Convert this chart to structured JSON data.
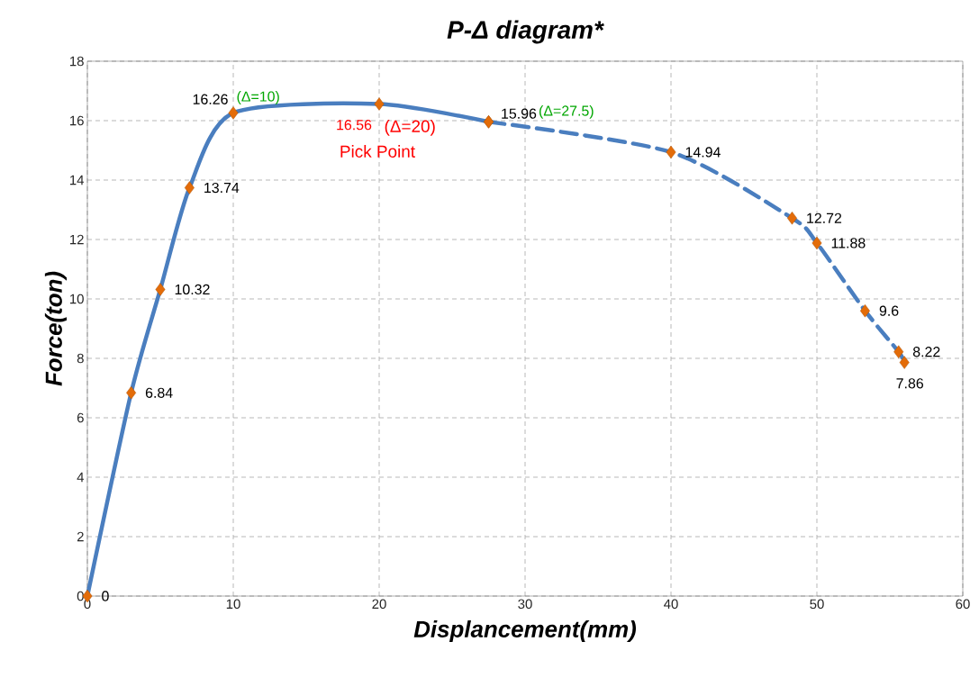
{
  "chart_data": {
    "type": "line",
    "title": "P-Δ diagram*",
    "xlabel": "Displancement(mm)",
    "ylabel": "Force(ton)",
    "series": [
      {
        "color": "#4a7ebf",
        "line_style": "solid",
        "x": [
          0,
          3,
          5,
          7,
          10,
          20,
          27.5
        ],
        "values": [
          0,
          6.84,
          10.32,
          13.74,
          16.26,
          16.56,
          15.96
        ],
        "value_labels": [
          "0",
          "6.84",
          "10.32",
          "13.74",
          "16.26",
          "16.56",
          "15.96"
        ],
        "colors": [
          "#e36c09",
          "#e36c09",
          "#e36c09",
          "#e36c09",
          "#e36c09",
          "#e36c09",
          "#e36c09"
        ]
      },
      {
        "color": "#4a7ebf",
        "line_style": "dashed",
        "x": [
          27.5,
          40,
          48.3,
          50,
          53.3,
          55.6,
          56
        ],
        "values": [
          15.96,
          14.94,
          12.72,
          11.88,
          9.6,
          8.22,
          7.86
        ],
        "value_labels": [
          null,
          "14.94",
          "12.72",
          "11.88",
          "9.6",
          "8.22",
          "7.86"
        ],
        "colors": [
          "#e36c09",
          "#e36c09",
          "#e36c09",
          "#e36c09",
          "#e36c09",
          "#e36c09",
          "#e36c09"
        ]
      }
    ],
    "marker": "diamond",
    "xlim": [
      0,
      60
    ],
    "xticks": [
      0,
      10,
      20,
      30,
      40,
      50,
      60
    ],
    "ylim": [
      0,
      18
    ],
    "yticks": [
      0,
      2,
      4,
      6,
      8,
      10,
      12,
      14,
      16,
      18
    ],
    "grid": true,
    "annotations": [
      "(Δ=10)",
      "(Δ=20)",
      "Pick Point",
      "(Δ=27.5)"
    ]
  }
}
